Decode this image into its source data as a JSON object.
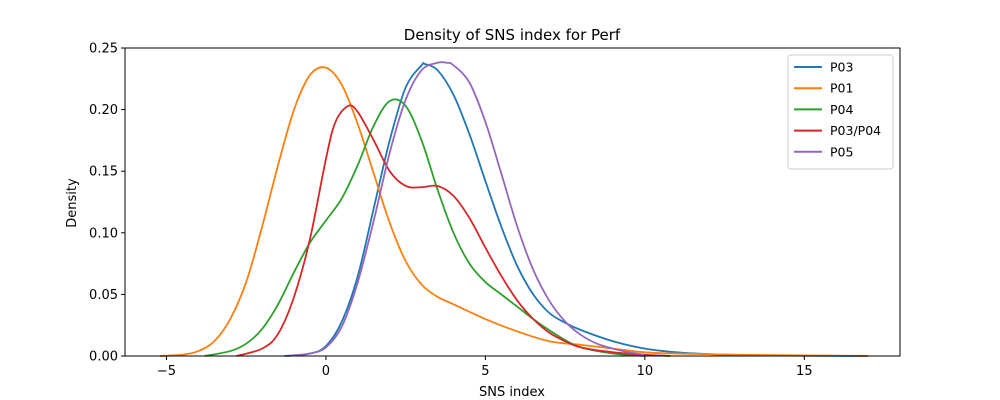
{
  "chart_data": {
    "type": "line",
    "title": "Density of SNS index for Perf",
    "xlabel": "SNS index",
    "ylabel": "Density",
    "xlim": [
      -6.3,
      18.0
    ],
    "ylim": [
      0,
      0.25
    ],
    "xticks": [
      -5,
      0,
      5,
      10,
      15
    ],
    "xtick_labels": [
      "−5",
      "0",
      "5",
      "10",
      "15"
    ],
    "yticks": [
      0,
      0.05,
      0.1,
      0.15,
      0.2,
      0.25
    ],
    "ytick_labels": [
      "0.00",
      "0.05",
      "0.10",
      "0.15",
      "0.20",
      "0.25"
    ],
    "grid": false,
    "legend_position": "top-right",
    "series": [
      {
        "name": "P03",
        "color": "#1f77b4",
        "x": [
          -1.3,
          -0.5,
          0,
          0.5,
          1,
          1.5,
          2,
          2.5,
          3,
          3.1,
          3.5,
          4,
          4.5,
          5,
          5.5,
          6,
          6.5,
          7,
          7.5,
          8,
          9,
          10,
          11,
          12,
          13,
          14,
          15,
          16,
          17
        ],
        "y": [
          0,
          0.002,
          0.008,
          0.028,
          0.065,
          0.12,
          0.175,
          0.218,
          0.236,
          0.237,
          0.232,
          0.212,
          0.18,
          0.142,
          0.105,
          0.073,
          0.05,
          0.035,
          0.027,
          0.021,
          0.012,
          0.006,
          0.003,
          0.0015,
          0.0008,
          0.0004,
          0.0002,
          0.0001,
          0
        ]
      },
      {
        "name": "P01",
        "color": "#ff7f0e",
        "x": [
          -5.2,
          -4.5,
          -4,
          -3.5,
          -3,
          -2.5,
          -2,
          -1.5,
          -1,
          -0.5,
          0,
          0.5,
          1,
          1.5,
          2,
          2.5,
          3,
          3.5,
          4,
          5,
          6,
          7,
          8,
          9,
          10,
          11,
          12,
          13,
          14,
          15,
          16,
          17
        ],
        "y": [
          0,
          0.001,
          0.004,
          0.012,
          0.03,
          0.06,
          0.105,
          0.155,
          0.2,
          0.228,
          0.234,
          0.22,
          0.188,
          0.148,
          0.108,
          0.077,
          0.058,
          0.048,
          0.042,
          0.03,
          0.02,
          0.012,
          0.009,
          0.006,
          0.003,
          0.002,
          0.0015,
          0.001,
          0.0007,
          0.0005,
          0.0003,
          0.0001
        ]
      },
      {
        "name": "P04",
        "color": "#2ca02c",
        "x": [
          -3.8,
          -3,
          -2.5,
          -2,
          -1.5,
          -1,
          -0.5,
          0,
          0.5,
          1,
          1.5,
          2,
          2.5,
          3,
          3.5,
          4,
          4.5,
          5,
          5.5,
          6,
          6.5,
          7,
          7.5,
          8,
          9,
          10
        ],
        "y": [
          0,
          0.004,
          0.01,
          0.022,
          0.042,
          0.068,
          0.092,
          0.11,
          0.128,
          0.155,
          0.187,
          0.207,
          0.203,
          0.175,
          0.135,
          0.1,
          0.075,
          0.06,
          0.05,
          0.04,
          0.03,
          0.021,
          0.013,
          0.007,
          0.002,
          0
        ]
      },
      {
        "name": "P03/P04",
        "color": "#d62728",
        "x": [
          -2.8,
          -2,
          -1.5,
          -1,
          -0.5,
          0,
          0.3,
          0.7,
          1,
          1.5,
          2,
          2.5,
          3,
          3.5,
          4,
          4.5,
          5,
          5.5,
          6,
          6.5,
          7,
          7.5,
          8,
          9,
          10,
          10.8
        ],
        "y": [
          0,
          0.006,
          0.018,
          0.048,
          0.095,
          0.16,
          0.19,
          0.203,
          0.198,
          0.175,
          0.15,
          0.138,
          0.137,
          0.138,
          0.13,
          0.112,
          0.088,
          0.065,
          0.045,
          0.03,
          0.019,
          0.012,
          0.007,
          0.003,
          0.001,
          0
        ]
      },
      {
        "name": "P05",
        "color": "#9467bd",
        "x": [
          -1.2,
          -0.5,
          0,
          0.5,
          1,
          1.5,
          2,
          2.5,
          3,
          3.5,
          3.8,
          4,
          4.5,
          5,
          5.5,
          6,
          6.5,
          7,
          7.5,
          8,
          8.5,
          9,
          9.5,
          10
        ],
        "y": [
          0,
          0.002,
          0.007,
          0.024,
          0.06,
          0.11,
          0.165,
          0.208,
          0.232,
          0.238,
          0.238,
          0.236,
          0.222,
          0.19,
          0.148,
          0.105,
          0.07,
          0.045,
          0.028,
          0.017,
          0.01,
          0.006,
          0.003,
          0.001
        ]
      }
    ]
  }
}
